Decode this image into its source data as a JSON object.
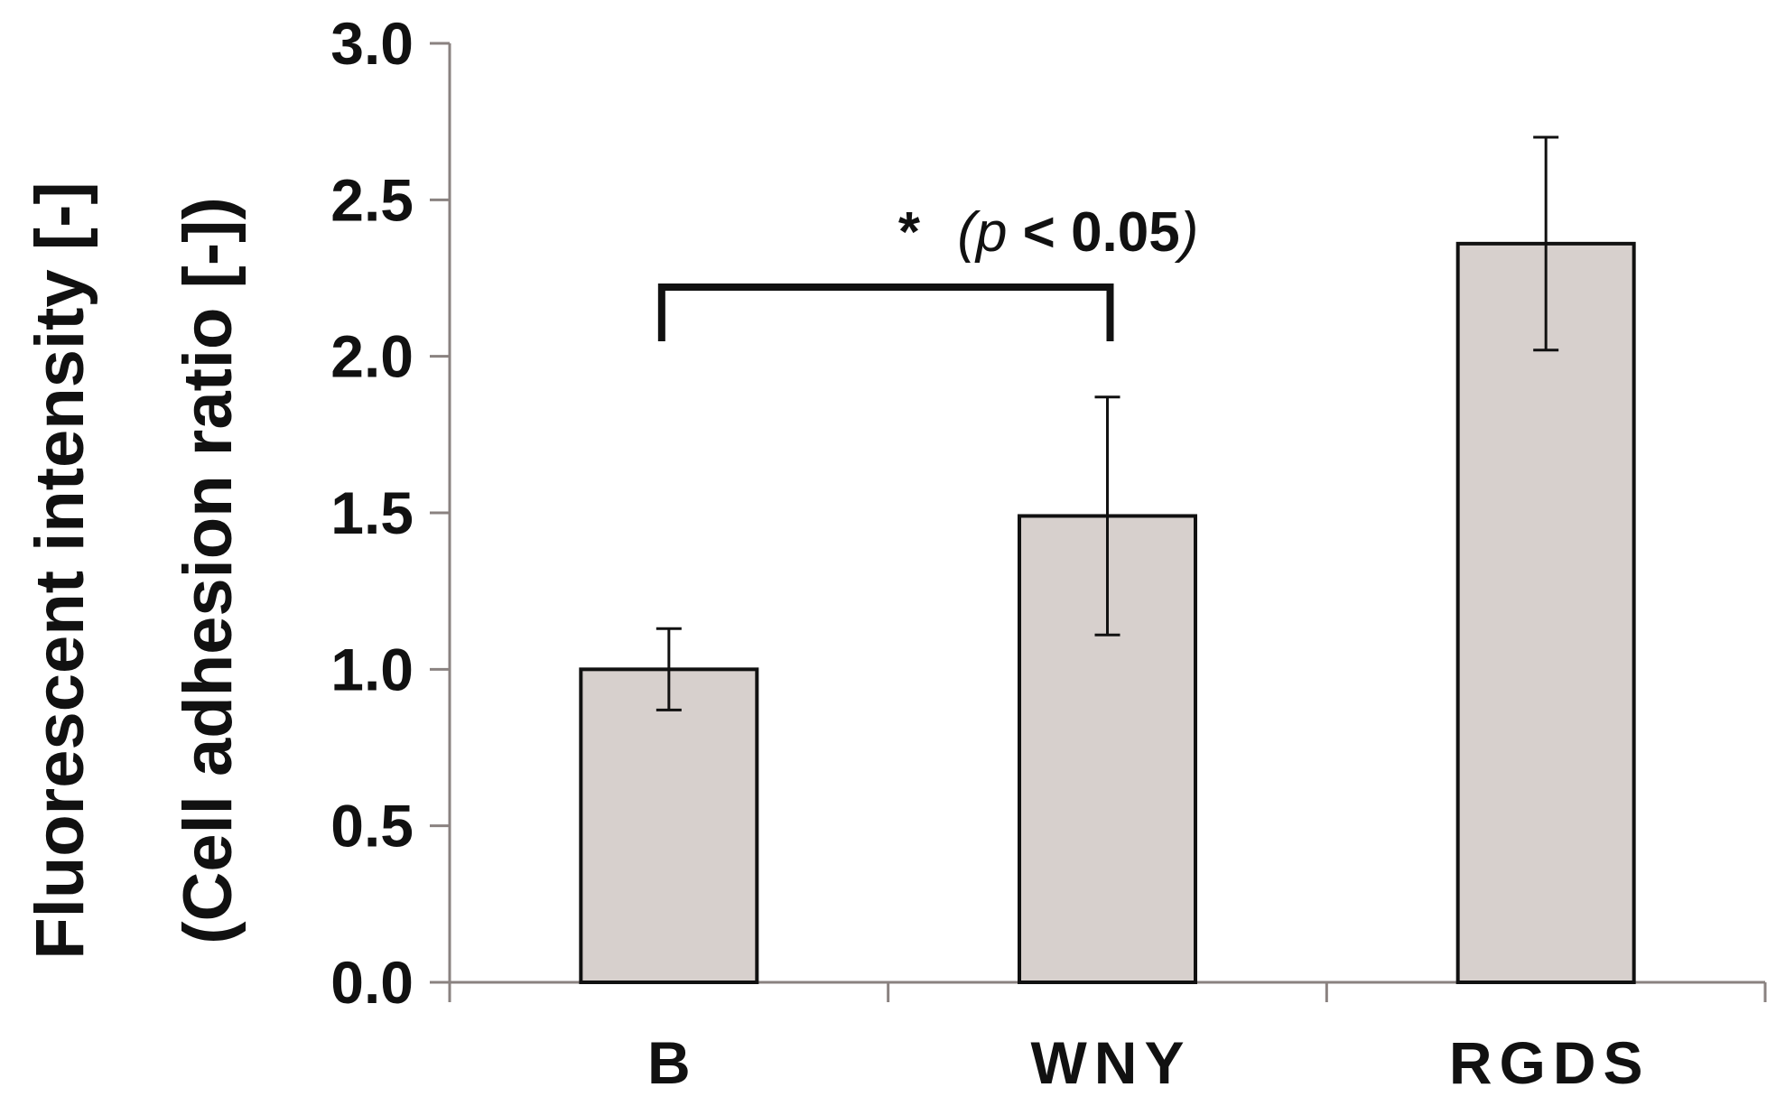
{
  "chart_data": {
    "type": "bar",
    "categories": [
      "B",
      "WNY",
      "RGDS"
    ],
    "values": [
      1.0,
      1.49,
      2.36
    ],
    "error_lower": [
      0.87,
      1.11,
      2.02
    ],
    "error_upper": [
      1.13,
      1.87,
      2.7
    ],
    "ylabel_line1": "Fluorescent intensity [-]",
    "ylabel_line2": "(Cell adhesion ratio [-])",
    "ylim": [
      0,
      3.0
    ],
    "yticks": [
      "0.0",
      "0.5",
      "1.0",
      "1.5",
      "2.0",
      "2.5",
      "3.0"
    ],
    "grid": false,
    "colors": {
      "bar_fill": "#d7d0cd",
      "bar_stroke": "#111111",
      "axis": "#8a8280"
    },
    "annotation": {
      "from": "B",
      "to": "WNY",
      "star": "*",
      "open_paren": "(",
      "p_symbol": "p",
      "condition": " < 0.05",
      "close_paren": ")"
    }
  }
}
